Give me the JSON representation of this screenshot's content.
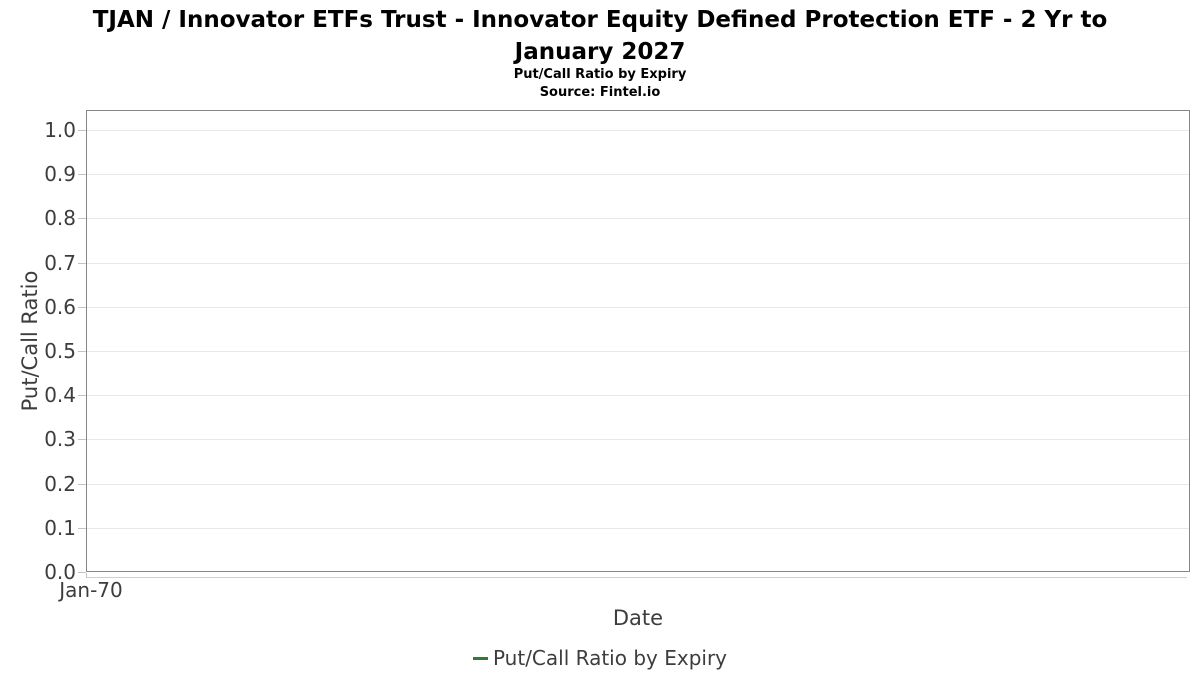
{
  "page": {
    "title_line1": "TJAN / Innovator ETFs Trust - Innovator Equity Defined Protection ETF - 2 Yr to",
    "title_line2": "January 2027",
    "subtitle": "Put/Call Ratio by Expiry",
    "source": "Source: Fintel.io"
  },
  "axes": {
    "x_label": "Date",
    "y_label": "Put/Call Ratio",
    "x_tick_labels": [
      "Jan-70"
    ],
    "y_tick_labels": [
      "0.0",
      "0.1",
      "0.2",
      "0.3",
      "0.4",
      "0.5",
      "0.6",
      "0.7",
      "0.8",
      "0.9",
      "1.0"
    ]
  },
  "legend": {
    "items": [
      {
        "label": "Put/Call Ratio by Expiry",
        "color": "#2E7D32"
      }
    ]
  },
  "colors": {
    "series_green": "#2E7D32",
    "axis_text": "#3d3d3d",
    "title_text": "#000000",
    "plot_border": "#868686",
    "gridline": "#e8e8e8",
    "tick": "#c3c3c3"
  },
  "chart_data": {
    "type": "line",
    "title": "TJAN / Innovator ETFs Trust - Innovator Equity Defined Protection ETF - 2 Yr to January 2027",
    "subtitle": "Put/Call Ratio by Expiry",
    "source": "Source: Fintel.io",
    "xlabel": "Date",
    "ylabel": "Put/Call Ratio",
    "ylim": [
      0.0,
      1.0
    ],
    "y_ticks": [
      0.0,
      0.1,
      0.2,
      0.3,
      0.4,
      0.5,
      0.6,
      0.7,
      0.8,
      0.9,
      1.0
    ],
    "x_tick_labels": [
      "Jan-70"
    ],
    "grid": "horizontal-only",
    "legend_position": "bottom-center",
    "series": [
      {
        "name": "Put/Call Ratio by Expiry",
        "color": "#2E7D32",
        "x": [],
        "values": []
      }
    ]
  }
}
